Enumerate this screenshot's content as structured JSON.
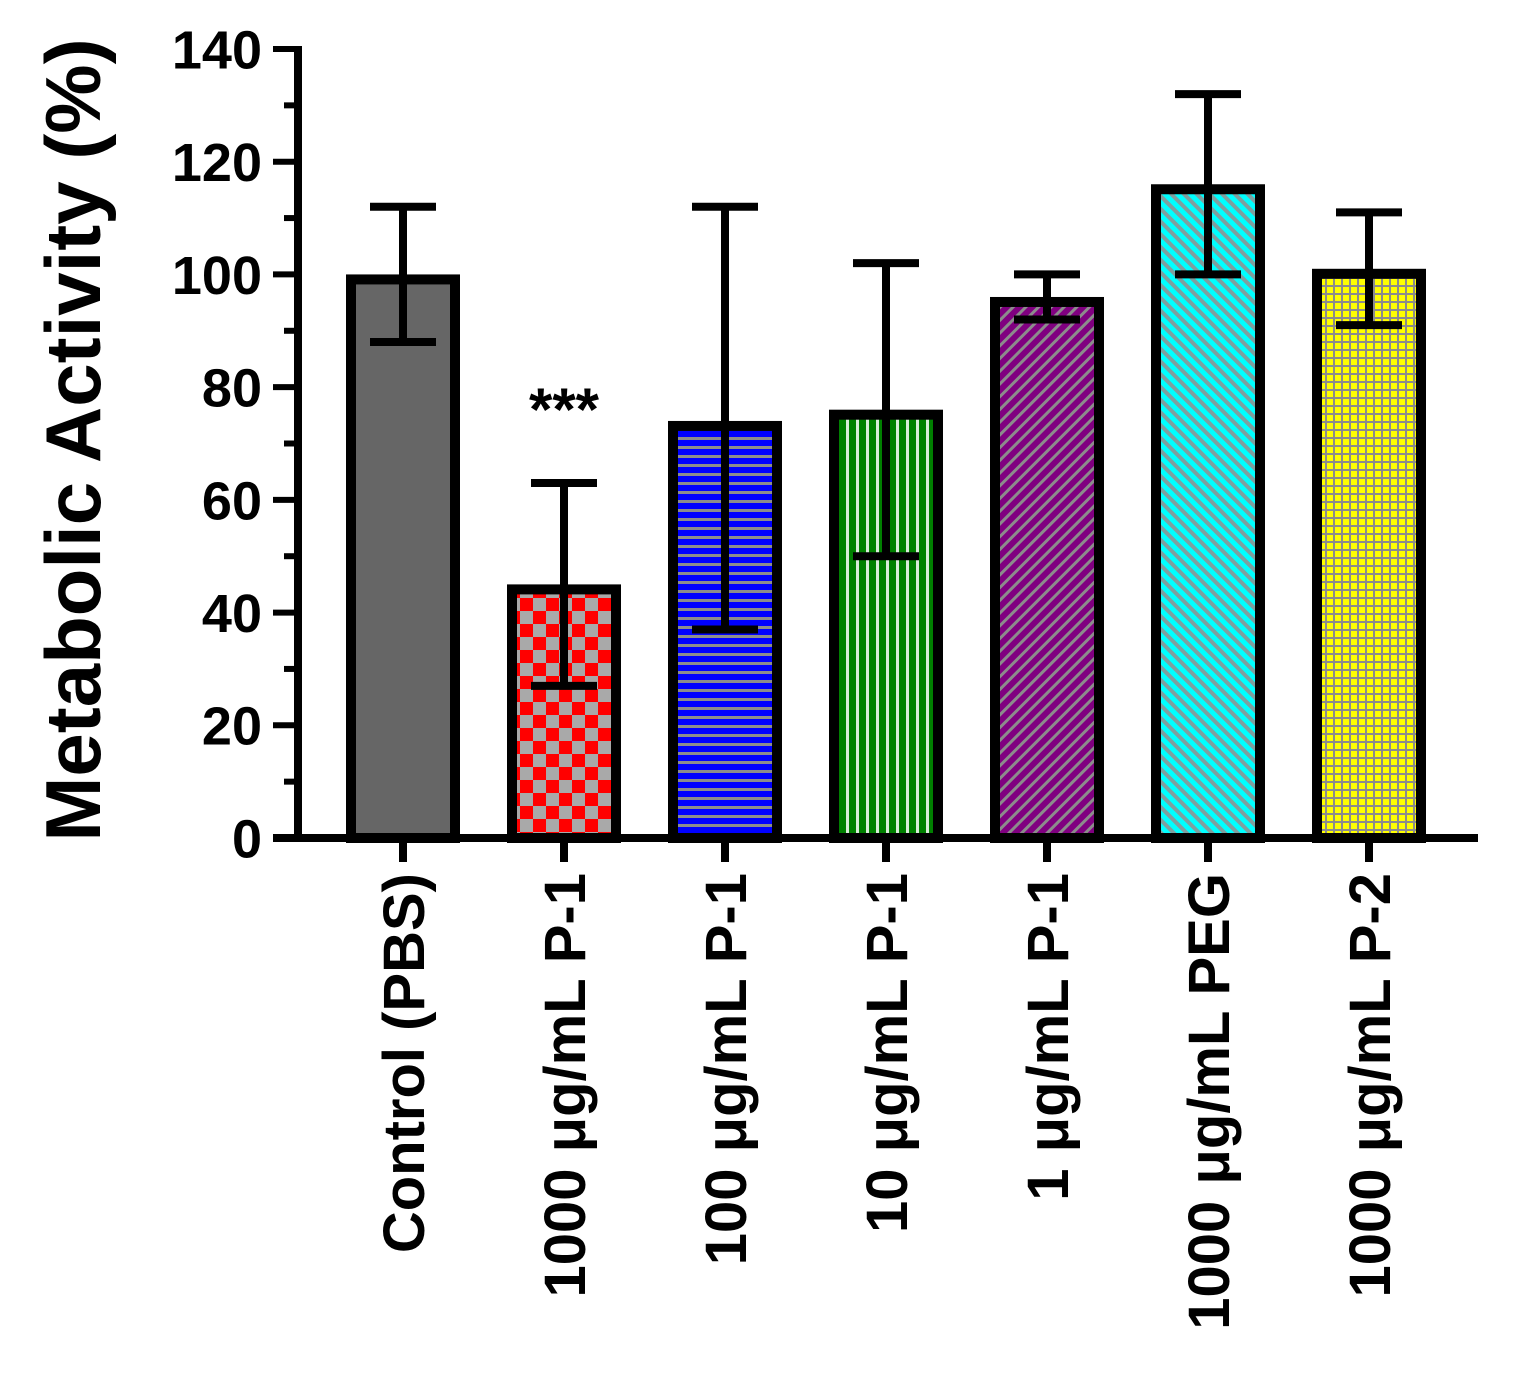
{
  "chart_data": {
    "type": "bar",
    "categories": [
      "Control (PBS)",
      "1000 μg/mL P-1",
      "100 μg/mL P-1",
      "10 μg/mL P-1",
      "1 μg/mL P-1",
      "1000 μg/mL PEG",
      "1000 μg/mL P-2"
    ],
    "values": [
      100,
      45,
      74,
      76,
      96,
      116,
      101
    ],
    "error_low": [
      88,
      27,
      37,
      50,
      92,
      100,
      91
    ],
    "error_high": [
      112,
      63,
      112,
      102,
      100,
      132,
      111
    ],
    "ylabel": "Metabolic Activity (%)",
    "ylim": [
      0,
      140
    ],
    "yticks": [
      0,
      20,
      40,
      60,
      80,
      100,
      120,
      140
    ],
    "y_minor_step": 10,
    "annotations": [
      {
        "category_index": 1,
        "text": "***"
      }
    ],
    "grid": false,
    "legend": "none",
    "axis_color": "#000000",
    "bar_styles": [
      {
        "fill": "#666666",
        "line_color": "#666666",
        "pattern": "solid"
      },
      {
        "fill": "#ff0000",
        "line_color": "#a9a9a9",
        "pattern": "checker"
      },
      {
        "fill": "#0000ff",
        "line_color": "#8c8c8c",
        "pattern": "horizontal-lines"
      },
      {
        "fill": "#008000",
        "line_color": "#d9ecd9",
        "pattern": "vertical-lines"
      },
      {
        "fill": "#800080",
        "line_color": "#8c8c8c",
        "pattern": "diagonal-up"
      },
      {
        "fill": "#00ffff",
        "line_color": "#7f9f9f",
        "pattern": "diagonal-down"
      },
      {
        "fill": "#ffff00",
        "line_color": "#8c8c8c",
        "pattern": "grid"
      }
    ]
  }
}
